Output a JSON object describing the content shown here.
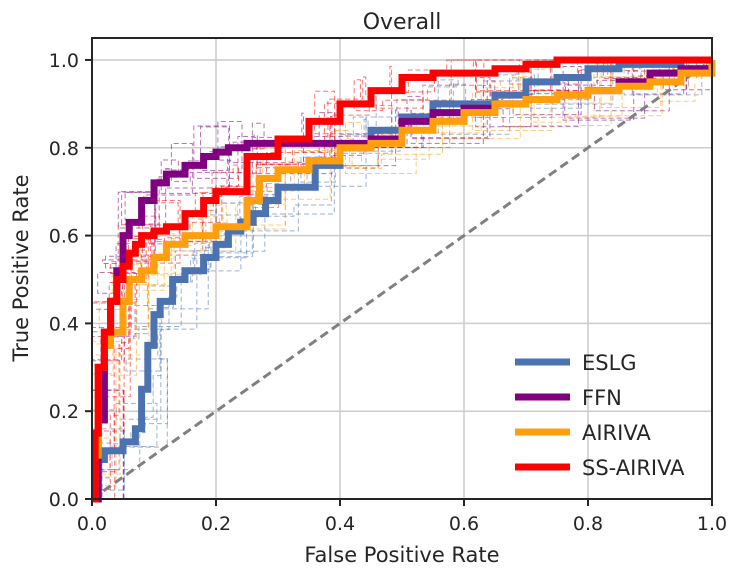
{
  "chart_data": {
    "type": "line",
    "title": "Overall",
    "xlabel": "False Positive Rate",
    "ylabel": "True Positive Rate",
    "xlim": [
      0,
      1
    ],
    "ylim": [
      0,
      1.05
    ],
    "xticks": [
      "0.0",
      "0.2",
      "0.4",
      "0.6",
      "0.8",
      "1.0"
    ],
    "yticks": [
      "0.0",
      "0.2",
      "0.4",
      "0.6",
      "0.8",
      "1.0"
    ],
    "grid": true,
    "legend_position": "lower-right",
    "series": [
      {
        "name": "ESLG",
        "color": "#4c72b0",
        "x": [
          0,
          0.01,
          0.02,
          0.05,
          0.07,
          0.08,
          0.09,
          0.1,
          0.11,
          0.13,
          0.15,
          0.18,
          0.2,
          0.22,
          0.24,
          0.26,
          0.28,
          0.3,
          0.35,
          0.36,
          0.4,
          0.45,
          0.5,
          0.55,
          0.6,
          0.65,
          0.7,
          0.75,
          0.8,
          0.85,
          0.9,
          0.95,
          1.0
        ],
        "y": [
          0,
          0.09,
          0.11,
          0.13,
          0.16,
          0.25,
          0.35,
          0.42,
          0.45,
          0.5,
          0.52,
          0.55,
          0.58,
          0.61,
          0.63,
          0.65,
          0.68,
          0.71,
          0.71,
          0.76,
          0.8,
          0.84,
          0.87,
          0.9,
          0.9,
          0.92,
          0.95,
          0.96,
          0.98,
          0.99,
          0.99,
          1.0,
          1.0
        ]
      },
      {
        "name": "FFN",
        "color": "#800080",
        "x": [
          0,
          0.01,
          0.02,
          0.03,
          0.04,
          0.05,
          0.06,
          0.08,
          0.1,
          0.12,
          0.15,
          0.18,
          0.2,
          0.22,
          0.25,
          0.3,
          0.35,
          0.4,
          0.45,
          0.5,
          0.55,
          0.6,
          0.65,
          0.7,
          0.75,
          0.8,
          0.85,
          0.9,
          0.95,
          1.0
        ],
        "y": [
          0,
          0.18,
          0.38,
          0.45,
          0.52,
          0.6,
          0.63,
          0.68,
          0.72,
          0.74,
          0.76,
          0.78,
          0.79,
          0.8,
          0.81,
          0.81,
          0.81,
          0.81,
          0.82,
          0.86,
          0.88,
          0.89,
          0.9,
          0.91,
          0.92,
          0.93,
          0.95,
          0.97,
          0.98,
          0.99
        ]
      },
      {
        "name": "AIRIVA",
        "color": "#ff9f0e",
        "x": [
          0,
          0.005,
          0.01,
          0.02,
          0.03,
          0.05,
          0.06,
          0.08,
          0.1,
          0.12,
          0.15,
          0.2,
          0.25,
          0.27,
          0.3,
          0.35,
          0.4,
          0.45,
          0.5,
          0.55,
          0.6,
          0.65,
          0.7,
          0.75,
          0.8,
          0.85,
          0.9,
          0.95,
          1.0
        ],
        "y": [
          0,
          0.1,
          0.3,
          0.35,
          0.38,
          0.45,
          0.5,
          0.52,
          0.55,
          0.58,
          0.6,
          0.62,
          0.68,
          0.73,
          0.75,
          0.77,
          0.8,
          0.81,
          0.84,
          0.86,
          0.88,
          0.9,
          0.91,
          0.92,
          0.93,
          0.94,
          0.95,
          0.97,
          1.0
        ]
      },
      {
        "name": "SS-AIRIVA",
        "color": "#ff0000",
        "x": [
          0,
          0.005,
          0.01,
          0.02,
          0.03,
          0.04,
          0.05,
          0.06,
          0.07,
          0.08,
          0.1,
          0.12,
          0.15,
          0.18,
          0.2,
          0.25,
          0.3,
          0.35,
          0.4,
          0.45,
          0.5,
          0.55,
          0.6,
          0.65,
          0.7,
          0.75,
          0.8,
          0.85,
          0.9,
          0.95,
          1.0
        ],
        "y": [
          0,
          0.15,
          0.3,
          0.38,
          0.45,
          0.5,
          0.53,
          0.56,
          0.58,
          0.6,
          0.61,
          0.62,
          0.65,
          0.68,
          0.7,
          0.78,
          0.82,
          0.86,
          0.9,
          0.93,
          0.96,
          0.97,
          0.97,
          0.98,
          0.99,
          1.0,
          1.0,
          1.0,
          1.0,
          1.0,
          1.0
        ]
      }
    ],
    "reference_line": {
      "x": [
        0,
        1
      ],
      "y": [
        0,
        1
      ],
      "color": "#808080",
      "style": "dashed"
    }
  }
}
